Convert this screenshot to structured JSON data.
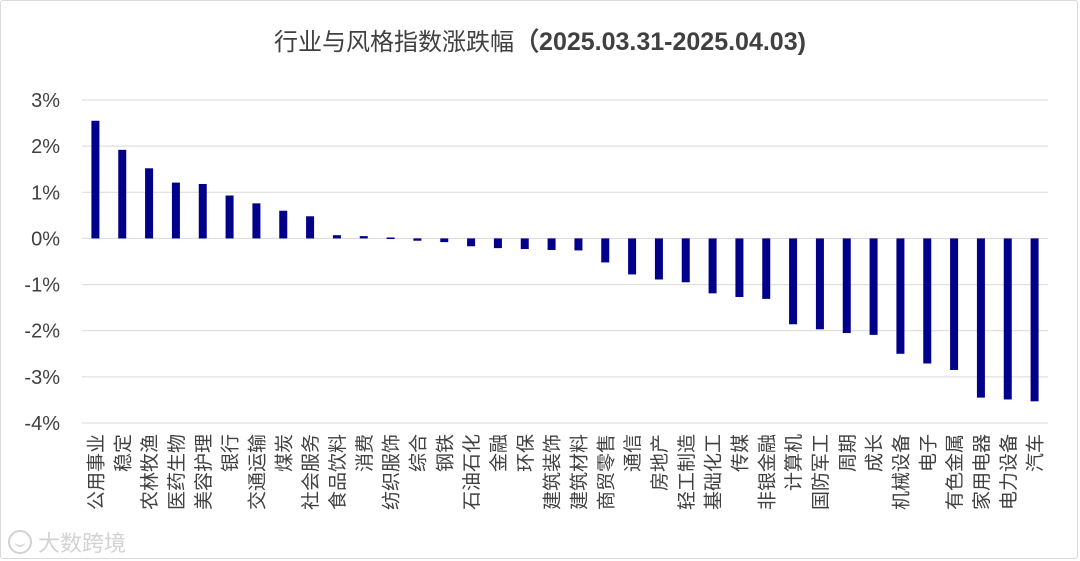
{
  "title_main": "行业与风格指数涨跌幅",
  "title_range": "（2025.03.31-2025.04.03)",
  "watermark": "大数跨境",
  "colors": {
    "bar": "#00008B",
    "grid": "#d9d9d9",
    "text": "#404040"
  },
  "chart_data": {
    "type": "bar",
    "title": "行业与风格指数涨跌幅（2025.03.31-2025.04.03)",
    "ylim": [
      -4,
      3
    ],
    "yticks": [
      3,
      2,
      1,
      0,
      -1,
      -2,
      -3,
      -4
    ],
    "ytick_labels": [
      "3%",
      "2%",
      "1%",
      "0%",
      "-1%",
      "-2%",
      "-3%",
      "-4%"
    ],
    "grid": true,
    "legend": "none",
    "categories": [
      "公用事业",
      "稳定",
      "农林牧渔",
      "医药生物",
      "美容护理",
      "银行",
      "交通运输",
      "煤炭",
      "社会服务",
      "食品饮料",
      "消费",
      "纺织服饰",
      "综合",
      "钢铁",
      "石油石化",
      "金融",
      "环保",
      "建筑装饰",
      "建筑材料",
      "商贸零售",
      "通信",
      "房地产",
      "轻工制造",
      "基础化工",
      "传媒",
      "非银金融",
      "计算机",
      "国防军工",
      "周期",
      "成长",
      "机械设备",
      "电子",
      "有色金属",
      "家用电器",
      "电力设备",
      "汽车"
    ],
    "values": [
      2.55,
      1.92,
      1.52,
      1.21,
      1.18,
      0.93,
      0.76,
      0.6,
      0.48,
      0.07,
      0.05,
      0.02,
      -0.05,
      -0.08,
      -0.17,
      -0.21,
      -0.23,
      -0.25,
      -0.26,
      -0.52,
      -0.78,
      -0.89,
      -0.95,
      -1.19,
      -1.27,
      -1.31,
      -1.86,
      -1.97,
      -2.05,
      -2.09,
      -2.5,
      -2.71,
      -2.85,
      -3.45,
      -3.49,
      -3.53
    ]
  }
}
